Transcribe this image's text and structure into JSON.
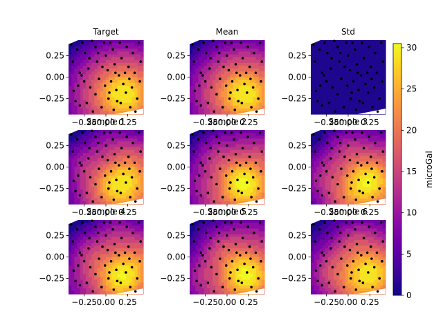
{
  "chart_data": {
    "type": "heatmap",
    "description_free": true,
    "colormap": "plasma",
    "point_color": "#000000",
    "panels": [
      {
        "title": "Target",
        "field": "target"
      },
      {
        "title": "Mean",
        "field": "mean"
      },
      {
        "title": "Std",
        "field": "std"
      },
      {
        "title": "Sample 1",
        "field": "sample1"
      },
      {
        "title": "Sample 2",
        "field": "sample2"
      },
      {
        "title": "Sample 3",
        "field": "sample3"
      },
      {
        "title": "Sample 4",
        "field": "sample4"
      },
      {
        "title": "Sample 5",
        "field": "sample5"
      },
      {
        "title": "Sample 6",
        "field": "sample6"
      }
    ],
    "x_ticks": [
      "−0.25",
      "0.00",
      "0.25"
    ],
    "x_tick_values": [
      -0.25,
      0.0,
      0.25
    ],
    "y_ticks": [
      "0.25",
      "0.00",
      "−0.25"
    ],
    "y_tick_values": [
      0.25,
      0.0,
      -0.25
    ],
    "xlim": [
      -0.43,
      0.43
    ],
    "ylim": [
      -0.43,
      0.43
    ],
    "colorbar": {
      "label": "microGal",
      "ticks": [
        "0",
        "5",
        "10",
        "15",
        "20",
        "25",
        "30"
      ],
      "tick_values": [
        0,
        5,
        10,
        15,
        20,
        25,
        30
      ],
      "range": [
        0,
        30.5
      ]
    },
    "field_peak": {
      "x": 0.2,
      "y": -0.2,
      "max": 30
    },
    "std_level": 1.2,
    "points": [
      [
        -0.4,
        0.38
      ],
      [
        -0.33,
        0.32
      ],
      [
        -0.3,
        0.05
      ],
      [
        -0.28,
        0.02
      ],
      [
        -0.32,
        -0.1
      ],
      [
        -0.37,
        -0.16
      ],
      [
        -0.24,
        0.28
      ],
      [
        -0.2,
        0.1
      ],
      [
        -0.25,
        -0.05
      ],
      [
        -0.18,
        -0.12
      ],
      [
        -0.22,
        -0.3
      ],
      [
        -0.3,
        -0.33
      ],
      [
        -0.12,
        0.35
      ],
      [
        -0.1,
        0.18
      ],
      [
        -0.08,
        -0.02
      ],
      [
        -0.12,
        -0.2
      ],
      [
        -0.05,
        -0.35
      ],
      [
        -0.02,
        0.4
      ],
      [
        0.0,
        0.25
      ],
      [
        0.02,
        0.08
      ],
      [
        -0.01,
        -0.1
      ],
      [
        0.03,
        -0.25
      ],
      [
        0.08,
        0.32
      ],
      [
        0.1,
        0.15
      ],
      [
        0.06,
        -0.05
      ],
      [
        0.12,
        -0.15
      ],
      [
        0.09,
        -0.38
      ],
      [
        0.16,
        0.4
      ],
      [
        0.18,
        0.22
      ],
      [
        0.15,
        0.02
      ],
      [
        0.2,
        -0.08
      ],
      [
        0.17,
        -0.3
      ],
      [
        0.24,
        0.35
      ],
      [
        0.26,
        0.12
      ],
      [
        0.23,
        -0.18
      ],
      [
        0.28,
        -0.35
      ],
      [
        0.31,
        0.28
      ],
      [
        0.33,
        0.05
      ],
      [
        0.3,
        -0.12
      ],
      [
        0.36,
        -0.25
      ],
      [
        0.38,
        0.4
      ],
      [
        0.4,
        0.18
      ],
      [
        0.39,
        -0.05
      ],
      [
        -0.38,
        0.18
      ],
      [
        -0.35,
        -0.28
      ],
      [
        -0.16,
        0.42
      ],
      [
        -0.04,
        0.12
      ],
      [
        0.05,
        0.4
      ],
      [
        0.13,
        -0.28
      ],
      [
        0.22,
        0.05
      ],
      [
        -0.27,
        0.4
      ],
      [
        -0.15,
        -0.4
      ],
      [
        0.34,
        -0.4
      ],
      [
        0.04,
        -0.18
      ],
      [
        -0.09,
        0.28
      ],
      [
        0.27,
        -0.02
      ],
      [
        -0.19,
        0.22
      ],
      [
        0.11,
        0.05
      ]
    ]
  }
}
